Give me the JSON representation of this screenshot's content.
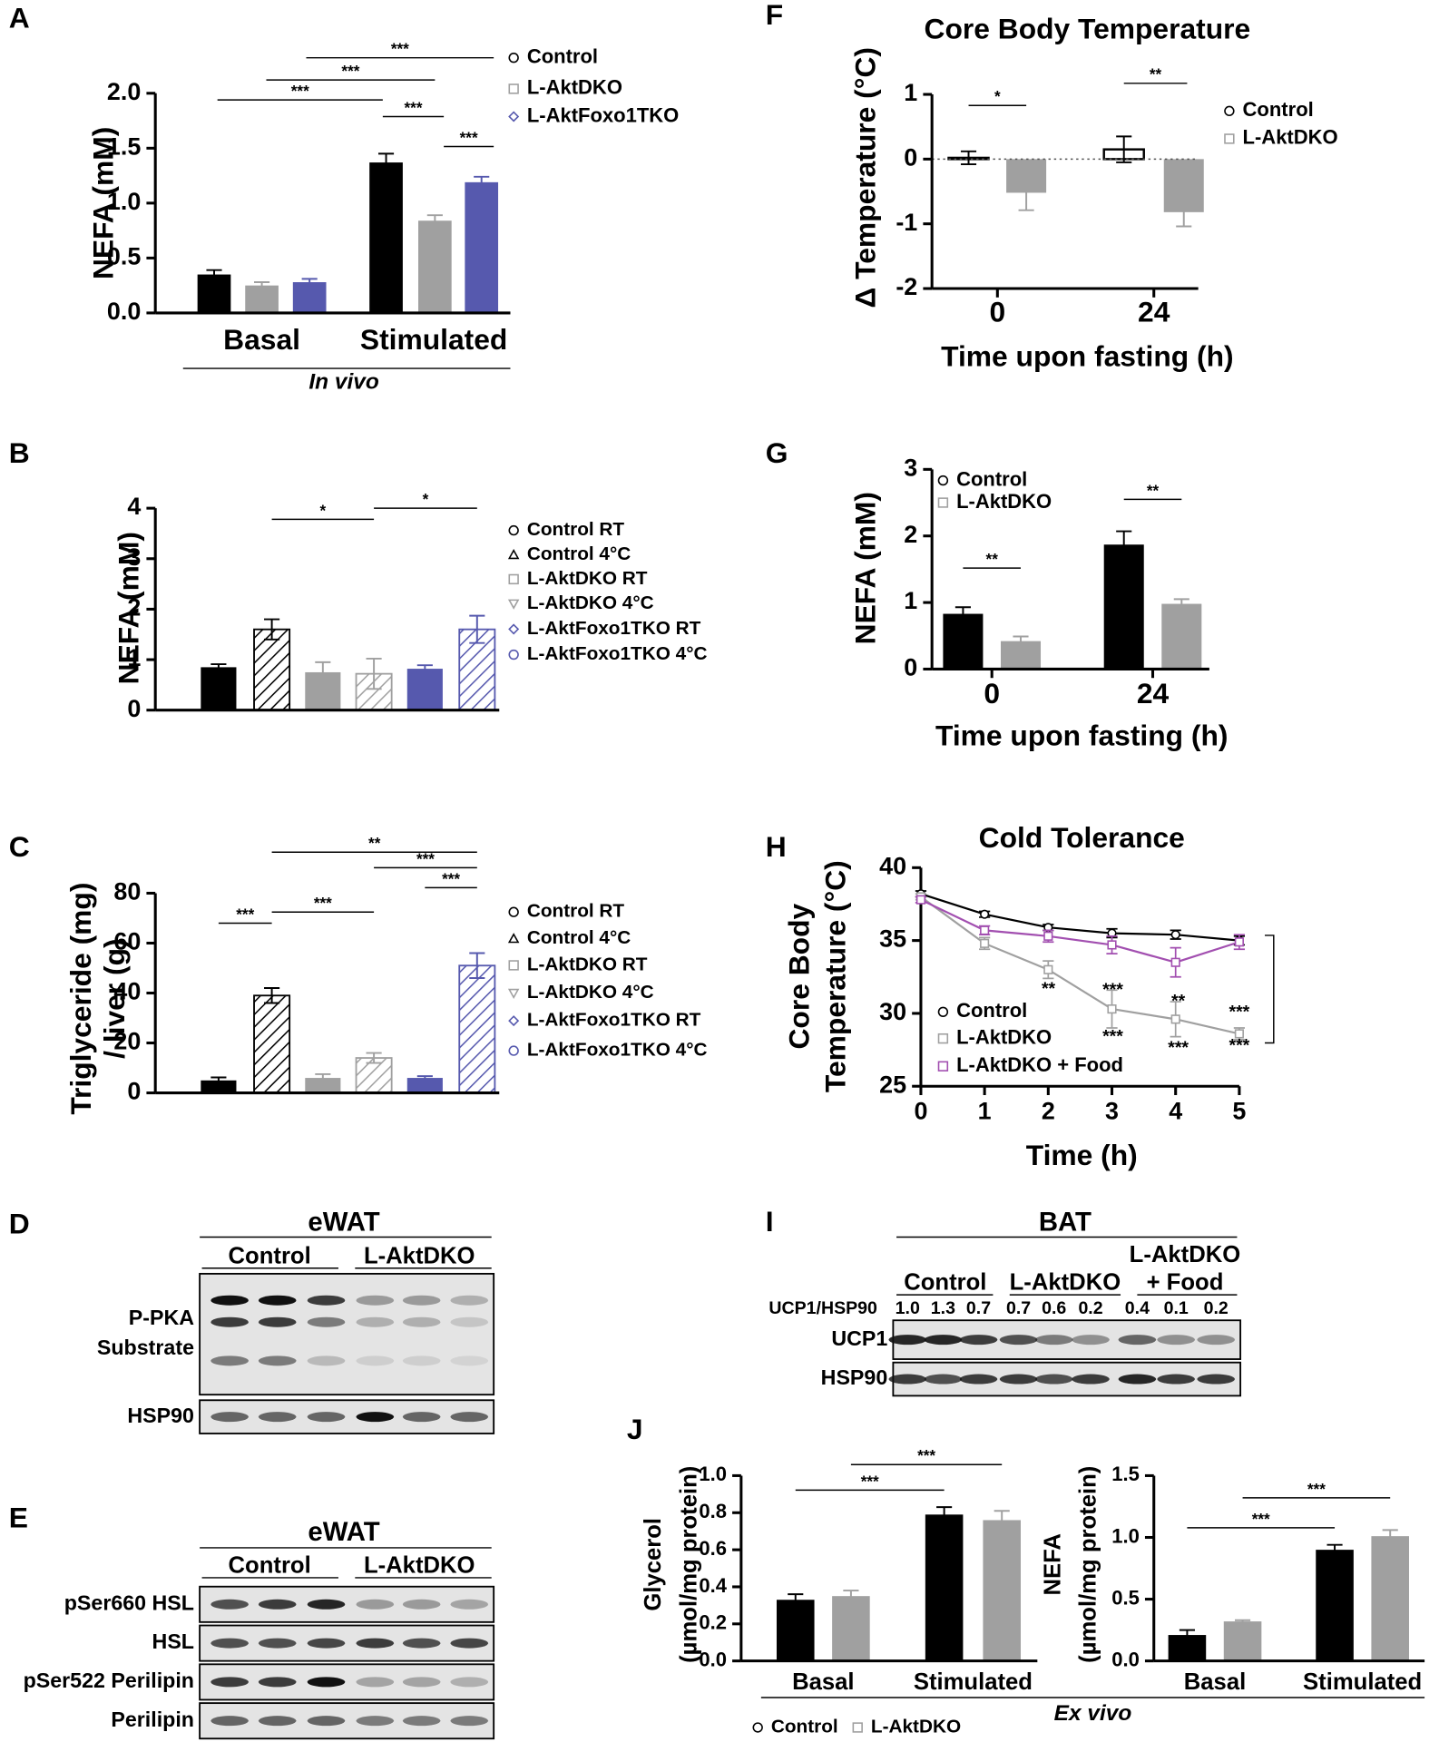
{
  "chart_data": [
    {
      "type": "bar",
      "panel": "A",
      "ylabel": "NEFA (mM)",
      "categories": [
        "Basal",
        "Stimulated"
      ],
      "annotation": "In vivo",
      "series": [
        {
          "name": "Control",
          "color": "#000000",
          "marker": "circle",
          "values": [
            0.35,
            1.37
          ],
          "errors": [
            0.04,
            0.08
          ]
        },
        {
          "name": "L-AktDKO",
          "color": "#a0a0a0",
          "marker": "square",
          "values": [
            0.25,
            0.84
          ],
          "errors": [
            0.03,
            0.05
          ]
        },
        {
          "name": "L-AktFoxo1TKO",
          "color": "#5659ae",
          "marker": "diamond",
          "values": [
            0.28,
            1.19
          ],
          "errors": [
            0.03,
            0.05
          ]
        }
      ],
      "ylim": [
        0,
        2
      ],
      "yticks": [
        {
          "value": 0,
          "label": "0.0"
        },
        0.5,
        {
          "value": 1,
          "label": "1.0"
        },
        1.5,
        {
          "value": 2,
          "label": "2.0"
        }
      ],
      "significance": [
        "***",
        "***",
        "***",
        "***",
        "***"
      ]
    },
    {
      "type": "bar",
      "panel": "B",
      "ylabel": "NEFA (mM)",
      "categories": [
        null
      ],
      "series": [
        {
          "name": "Control RT",
          "color": "#000000",
          "marker": "circle",
          "values": [
            0.85
          ],
          "errors": [
            0.06
          ]
        },
        {
          "name": "Control 4°C",
          "color": "#000000",
          "marker": "triangle",
          "hatch": true,
          "values": [
            1.6
          ],
          "errors": [
            0.2
          ]
        },
        {
          "name": "L-AktDKO RT",
          "color": "#a0a0a0",
          "marker": "square",
          "values": [
            0.75
          ],
          "errors": [
            0.2
          ]
        },
        {
          "name": "L-AktDKO 4°C",
          "color": "#a0a0a0",
          "marker": "triangle-down",
          "hatch": true,
          "values": [
            0.72
          ],
          "errors": [
            0.3
          ]
        },
        {
          "name": "L-AktFoxo1TKO RT",
          "color": "#5659ae",
          "marker": "diamond",
          "values": [
            0.82
          ],
          "errors": [
            0.07
          ]
        },
        {
          "name": "L-AktFoxo1TKO 4°C",
          "color": "#5659ae",
          "marker": "circle",
          "hatch": true,
          "values": [
            1.6
          ],
          "errors": [
            0.27
          ]
        }
      ],
      "ylim": [
        0,
        4
      ],
      "yticks": [
        0,
        1,
        2,
        3,
        4
      ],
      "significance": [
        "*",
        "*"
      ]
    },
    {
      "type": "bar",
      "panel": "C",
      "ylabel": [
        "Triglyceride (mg)",
        "/ liver (g)"
      ],
      "categories": [
        null
      ],
      "series": [
        {
          "name": "Control RT",
          "color": "#000000",
          "marker": "circle",
          "values": [
            5
          ],
          "errors": [
            1.2
          ]
        },
        {
          "name": "Control 4°C",
          "color": "#000000",
          "marker": "triangle",
          "hatch": true,
          "values": [
            39
          ],
          "errors": [
            3
          ]
        },
        {
          "name": "L-AktDKO RT",
          "color": "#a0a0a0",
          "marker": "square",
          "values": [
            6
          ],
          "errors": [
            1.5
          ]
        },
        {
          "name": "L-AktDKO 4°C",
          "color": "#a0a0a0",
          "marker": "triangle-down",
          "hatch": true,
          "values": [
            14
          ],
          "errors": [
            2
          ]
        },
        {
          "name": "L-AktFoxo1TKO RT",
          "color": "#5659ae",
          "marker": "diamond",
          "values": [
            6
          ],
          "errors": [
            0.7
          ]
        },
        {
          "name": "L-AktFoxo1TKO 4°C",
          "color": "#5659ae",
          "marker": "circle",
          "hatch": true,
          "values": [
            51
          ],
          "errors": [
            5
          ]
        }
      ],
      "ylim": [
        0,
        80
      ],
      "yticks": [
        0,
        20,
        40,
        60,
        80
      ],
      "significance": [
        "***",
        "***",
        "**",
        "***",
        "***"
      ]
    },
    {
      "type": "bar",
      "panel": "F",
      "title": "Core Body Temperature",
      "ylabel": "Δ Temperature (°C)",
      "xlabel": "Time upon fasting (h)",
      "categories": [
        "0",
        "24"
      ],
      "series": [
        {
          "name": "Control",
          "color": "#000000",
          "marker": "circle",
          "open": true,
          "values": [
            0.02,
            0.15
          ],
          "errors": [
            0.1,
            0.2
          ]
        },
        {
          "name": "L-AktDKO",
          "color": "#a0a0a0",
          "marker": "square",
          "values": [
            -0.52,
            -0.82
          ],
          "errors": [
            0.27,
            0.22
          ]
        }
      ],
      "ylim": [
        -2,
        1
      ],
      "yticks": [
        -2,
        -1,
        0,
        1
      ],
      "zero_line": true,
      "significance": [
        "*",
        "**"
      ]
    },
    {
      "type": "bar",
      "panel": "G",
      "ylabel": "NEFA (mM)",
      "xlabel": "Time upon fasting (h)",
      "categories": [
        "0",
        "24"
      ],
      "series": [
        {
          "name": "Control",
          "color": "#000000",
          "marker": "circle",
          "values": [
            0.83,
            1.87
          ],
          "errors": [
            0.1,
            0.2
          ]
        },
        {
          "name": "L-AktDKO",
          "color": "#a0a0a0",
          "marker": "square",
          "values": [
            0.42,
            0.98
          ],
          "errors": [
            0.07,
            0.07
          ]
        }
      ],
      "ylim": [
        0,
        3
      ],
      "yticks": [
        0,
        1,
        2,
        3
      ],
      "significance": [
        "**",
        "**"
      ]
    },
    {
      "type": "line",
      "panel": "H",
      "title": "Cold Tolerance",
      "xlabel": "Time (h)",
      "ylabel": [
        "Core Body",
        "Temperature (°C)"
      ],
      "x": [
        0,
        1,
        2,
        3,
        4,
        5
      ],
      "series": [
        {
          "name": "Control",
          "color": "#000000",
          "marker": "circle",
          "values": [
            38.2,
            36.8,
            35.9,
            35.5,
            35.4,
            35.0
          ],
          "errors": [
            0.2,
            0.2,
            0.2,
            0.3,
            0.3,
            0.3
          ]
        },
        {
          "name": "L-AktDKO",
          "color": "#a0a0a0",
          "marker": "square",
          "values": [
            38.0,
            34.8,
            33.0,
            30.3,
            29.6,
            28.6
          ],
          "errors": [
            0.2,
            0.4,
            0.6,
            1.3,
            1.2,
            0.4
          ]
        },
        {
          "name": "L-AktDKO + Food",
          "color": "#a24fb0",
          "marker": "square",
          "values": [
            37.8,
            35.7,
            35.3,
            34.7,
            33.5,
            34.9
          ],
          "errors": [
            0.2,
            0.3,
            0.4,
            0.6,
            1.0,
            0.5
          ]
        }
      ],
      "xlim": [
        0,
        5
      ],
      "ylim": [
        25,
        40
      ],
      "xticks": [
        0,
        1,
        2,
        3,
        4,
        5
      ],
      "yticks": [
        25,
        30,
        35,
        40
      ],
      "significance": [
        "**",
        "***",
        "**",
        "***",
        "***",
        "***",
        "***"
      ]
    },
    {
      "type": "bar",
      "panel": "J",
      "ylabel": [
        "Glycerol",
        "(µmol/mg protein)"
      ],
      "categories": [
        "Basal",
        "Stimulated"
      ],
      "annotation": "Ex vivo",
      "series": [
        {
          "name": "Control",
          "color": "#000000",
          "marker": "circle",
          "values": [
            0.33,
            0.79
          ],
          "errors": [
            0.03,
            0.04
          ]
        },
        {
          "name": "L-AktDKO",
          "color": "#a0a0a0",
          "marker": "square",
          "values": [
            0.35,
            0.76
          ],
          "errors": [
            0.03,
            0.05
          ]
        }
      ],
      "ylim": [
        0,
        1
      ],
      "yticks": [
        {
          "value": 0,
          "label": "0.0"
        },
        0.2,
        0.4,
        0.6,
        0.8,
        {
          "value": 1,
          "label": "1.0"
        }
      ],
      "significance": [
        "***",
        "***"
      ]
    },
    {
      "type": "bar",
      "ylabel": [
        "NEFA",
        "(µmol/mg protein)"
      ],
      "categories": [
        "Basal",
        "Stimulated"
      ],
      "series": [
        {
          "color": "#000000",
          "values": [
            0.21,
            0.9
          ],
          "errors": [
            0.04,
            0.04
          ]
        },
        {
          "color": "#a0a0a0",
          "values": [
            0.32,
            1.01
          ],
          "errors": [
            0.01,
            0.05
          ]
        }
      ],
      "ylim": [
        0,
        1.5
      ],
      "yticks": [
        {
          "value": 0,
          "label": "0.0"
        },
        0.5,
        {
          "value": 1,
          "label": "1.0"
        },
        1.5
      ],
      "significance": [
        "***",
        "***"
      ]
    }
  ],
  "blots": [
    {
      "panel": "D",
      "title": "eWAT",
      "groups": [
        [
          "Control"
        ],
        [
          "L-AktDKO"
        ]
      ],
      "rows": [
        [
          "P-PKA",
          "Substrate"
        ],
        [
          "HSP90"
        ]
      ]
    },
    {
      "panel": "E",
      "title": "eWAT",
      "groups": [
        [
          "Control"
        ],
        [
          "L-AktDKO"
        ]
      ],
      "rows": [
        [
          "pSer660 HSL"
        ],
        [
          "HSL"
        ],
        [
          "pSer522 Perilipin"
        ],
        [
          "Perilipin"
        ]
      ]
    },
    {
      "panel": "I",
      "title": "BAT",
      "groups": [
        [
          "Control"
        ],
        [
          "L-AktDKO"
        ],
        [
          "L-AktDKO",
          "+ Food"
        ]
      ],
      "ratio_label": "UCP1/HSP90",
      "ratios": [
        "1.0",
        "1.3",
        "0.7",
        "0.7",
        "0.6",
        "0.2",
        "0.4",
        "0.1",
        "0.2"
      ],
      "rows": [
        [
          "UCP1"
        ],
        [
          "HSP90"
        ]
      ]
    }
  ]
}
